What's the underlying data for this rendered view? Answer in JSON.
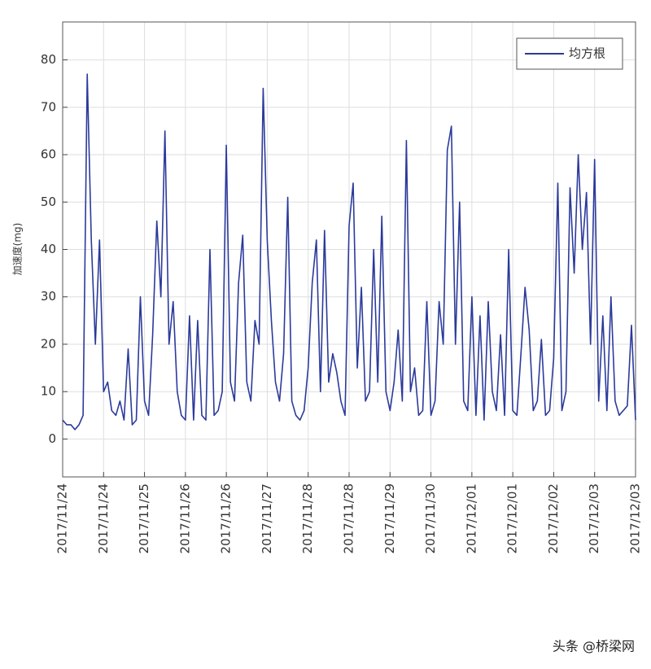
{
  "chart_data": {
    "type": "line",
    "ylabel": "加速度(mg)",
    "legend": "upper right",
    "grid": true,
    "xlim": [
      0,
      14
    ],
    "ylim": [
      -8,
      88
    ],
    "yticks": [
      0,
      10,
      20,
      30,
      40,
      50,
      60,
      70,
      80
    ],
    "xticks": [
      {
        "value": 0,
        "label": "2017/11/24"
      },
      {
        "value": 1,
        "label": "2017/11/24"
      },
      {
        "value": 2,
        "label": "2017/11/25"
      },
      {
        "value": 3,
        "label": "2017/11/26"
      },
      {
        "value": 4,
        "label": "2017/11/26"
      },
      {
        "value": 5,
        "label": "2017/11/27"
      },
      {
        "value": 6,
        "label": "2017/11/28"
      },
      {
        "value": 7,
        "label": "2017/11/28"
      },
      {
        "value": 8,
        "label": "2017/11/29"
      },
      {
        "value": 9,
        "label": "2017/11/30"
      },
      {
        "value": 10,
        "label": "2017/12/01"
      },
      {
        "value": 11,
        "label": "2017/12/01"
      },
      {
        "value": 12,
        "label": "2017/12/02"
      },
      {
        "value": 13,
        "label": "2017/12/03"
      },
      {
        "value": 14,
        "label": "2017/12/03"
      }
    ],
    "x": [
      0,
      0.1,
      0.2,
      0.3,
      0.4,
      0.5,
      0.6,
      0.7,
      0.8,
      0.9,
      1,
      1.1,
      1.2,
      1.3,
      1.4,
      1.5,
      1.6,
      1.7,
      1.8,
      1.9,
      2,
      2.1,
      2.2,
      2.3,
      2.4,
      2.5,
      2.6,
      2.7,
      2.8,
      2.9,
      3,
      3.1,
      3.2,
      3.3,
      3.4,
      3.5,
      3.6,
      3.7,
      3.8,
      3.9,
      4,
      4.1,
      4.2,
      4.3,
      4.4,
      4.5,
      4.6,
      4.7,
      4.8,
      4.9,
      5,
      5.1,
      5.2,
      5.3,
      5.4,
      5.5,
      5.6,
      5.7,
      5.8,
      5.9,
      6,
      6.1,
      6.2,
      6.3,
      6.4,
      6.5,
      6.6,
      6.7,
      6.8,
      6.9,
      7,
      7.1,
      7.2,
      7.3,
      7.4,
      7.5,
      7.6,
      7.7,
      7.8,
      7.9,
      8,
      8.1,
      8.2,
      8.3,
      8.4,
      8.5,
      8.6,
      8.7,
      8.8,
      8.9,
      9,
      9.1,
      9.2,
      9.3,
      9.4,
      9.5,
      9.6,
      9.7,
      9.8,
      9.9,
      10,
      10.1,
      10.2,
      10.3,
      10.4,
      10.5,
      10.6,
      10.7,
      10.8,
      10.9,
      11,
      11.1,
      11.2,
      11.3,
      11.4,
      11.5,
      11.6,
      11.7,
      11.8,
      11.9,
      12,
      12.1,
      12.2,
      12.3,
      12.4,
      12.5,
      12.6,
      12.7,
      12.8,
      12.9,
      13,
      13.1,
      13.2,
      13.3,
      13.4,
      13.5,
      13.6,
      13.7,
      13.8,
      13.9,
      14
    ],
    "series": [
      {
        "name": "均方根",
        "color": "#2b3a9b",
        "values": [
          4,
          3,
          3,
          2,
          3,
          5,
          77,
          42,
          20,
          42,
          10,
          12,
          6,
          5,
          8,
          4,
          19,
          3,
          4,
          30,
          8,
          5,
          22,
          46,
          30,
          65,
          20,
          29,
          10,
          5,
          4,
          26,
          4,
          25,
          5,
          4,
          40,
          5,
          6,
          10,
          62,
          12,
          8,
          33,
          43,
          12,
          8,
          25,
          20,
          74,
          42,
          25,
          12,
          8,
          18,
          51,
          8,
          5,
          4,
          6,
          15,
          33,
          42,
          10,
          44,
          12,
          18,
          14,
          8,
          5,
          45,
          54,
          15,
          32,
          8,
          10,
          40,
          12,
          47,
          10,
          6,
          12,
          23,
          8,
          63,
          10,
          15,
          5,
          6,
          29,
          5,
          8,
          29,
          20,
          61,
          66,
          20,
          50,
          8,
          6,
          30,
          5,
          26,
          4,
          29,
          10,
          6,
          22,
          5,
          40,
          6,
          5,
          18,
          32,
          23,
          6,
          8,
          21,
          5,
          6,
          17,
          54,
          6,
          10,
          53,
          35,
          60,
          40,
          52,
          20,
          59,
          8,
          26,
          6,
          30,
          8,
          5,
          6,
          7,
          24,
          4
        ]
      }
    ]
  },
  "watermark": "头条 @桥梁网"
}
